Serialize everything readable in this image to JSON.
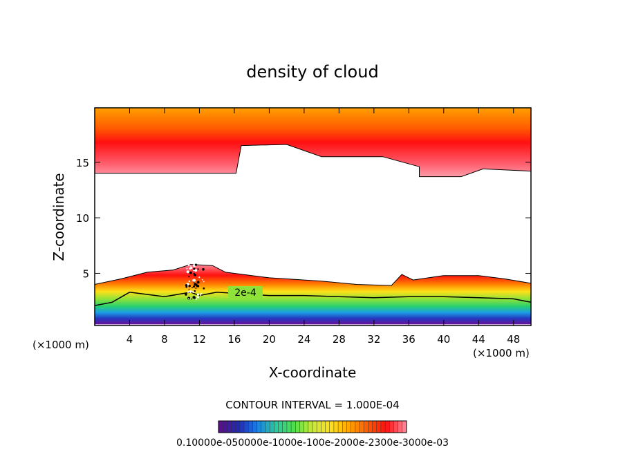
{
  "chart_data": {
    "type": "heatmap",
    "title": "density of cloud",
    "xlabel": "X-coordinate",
    "ylabel": "Z-coordinate",
    "x_unit_label": "(×1000 m)",
    "xlim": [
      0,
      50
    ],
    "ylim": [
      0.3,
      19.9
    ],
    "x_ticks": [
      4,
      8,
      12,
      16,
      20,
      24,
      28,
      32,
      36,
      40,
      44,
      48
    ],
    "y_ticks": [
      5,
      10,
      15
    ],
    "contour_interval_label": "CONTOUR INTERVAL = 1.000E-04",
    "contour_label": "2e-4",
    "colorbar_label": "0.10000e-050000e-1000e-100e-2000e-2300e-3000e-03",
    "colorbar_range": [
      0.0001,
      0.0003
    ],
    "colors": [
      "#5a0f8f",
      "#1f2ab5",
      "#1c7fe6",
      "#27c9a0",
      "#4fe04c",
      "#c8e836",
      "#ffe01a",
      "#ffa500",
      "#ff5a00",
      "#ff1010",
      "#ff8090"
    ],
    "grid": false,
    "legend": "colorbar-bottom",
    "upper_cloud": {
      "base_z": [
        [
          0,
          14.0
        ],
        [
          16.2,
          14.0
        ],
        [
          16.8,
          16.5
        ],
        [
          22,
          16.6
        ],
        [
          26,
          15.5
        ],
        [
          33,
          15.5
        ],
        [
          37.2,
          14.6
        ],
        [
          37.2,
          13.7
        ],
        [
          42,
          13.7
        ],
        [
          44.5,
          14.4
        ],
        [
          50,
          14.2
        ]
      ],
      "density_max_z": 17.3,
      "top_z": 19.9
    },
    "lower_cloud": {
      "base_z": 0.4,
      "top_z": [
        [
          0,
          4.0
        ],
        [
          3,
          4.5
        ],
        [
          6,
          5.1
        ],
        [
          9,
          5.3
        ],
        [
          11,
          5.8
        ],
        [
          13.5,
          5.7
        ],
        [
          15,
          5.1
        ],
        [
          20,
          4.6
        ],
        [
          26,
          4.3
        ],
        [
          30,
          4.0
        ],
        [
          34,
          3.9
        ],
        [
          35.2,
          4.9
        ],
        [
          36.5,
          4.4
        ],
        [
          40,
          4.8
        ],
        [
          44,
          4.8
        ],
        [
          47,
          4.5
        ],
        [
          50,
          4.1
        ]
      ],
      "contour_2e4_z": [
        [
          0,
          2.1
        ],
        [
          2,
          2.4
        ],
        [
          4,
          3.3
        ],
        [
          8,
          2.9
        ],
        [
          11,
          3.3
        ],
        [
          12,
          3.0
        ],
        [
          14,
          3.3
        ],
        [
          16,
          3.2
        ],
        [
          20,
          3.0
        ],
        [
          24,
          3.0
        ],
        [
          28,
          2.9
        ],
        [
          32,
          2.8
        ],
        [
          36,
          2.9
        ],
        [
          40,
          2.9
        ],
        [
          44,
          2.8
        ],
        [
          48,
          2.7
        ],
        [
          50,
          2.4
        ]
      ]
    }
  }
}
